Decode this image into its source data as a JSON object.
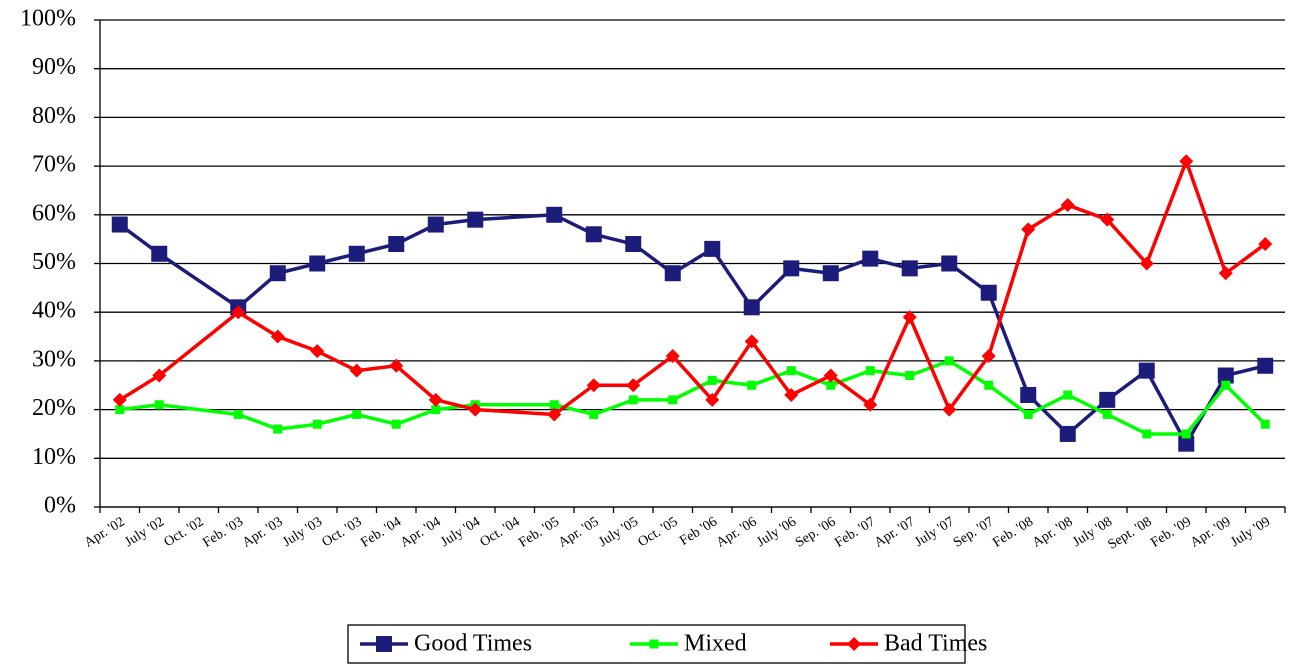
{
  "chart_data": {
    "type": "line",
    "categories": [
      "Apr. '02",
      "July '02",
      "Oct. '02",
      "Feb. '03",
      "Apr. '03",
      "July '03",
      "Oct. '03",
      "Feb. '04",
      "Apr. '04",
      "July '04",
      "Oct. '04",
      "Feb. '05",
      "Apr. '05",
      "July '05",
      "Oct. '05",
      "Feb '06",
      "Apr. '06",
      "July '06",
      "Sep. '06",
      "Feb. '07",
      "Apr. '07",
      "July '07",
      "Sep. '07",
      "Feb. '08",
      "Apr. '08",
      "July '08",
      "Sept. '08",
      "Feb. '09",
      "Apr. '09",
      "July '09"
    ],
    "series": [
      {
        "name": "Good Times",
        "color": "#1c1c7a",
        "marker": "square",
        "values": [
          58,
          52,
          null,
          41,
          48,
          50,
          52,
          54,
          58,
          59,
          null,
          60,
          56,
          54,
          48,
          53,
          41,
          49,
          48,
          51,
          49,
          50,
          44,
          23,
          15,
          22,
          28,
          13,
          27,
          29
        ]
      },
      {
        "name": "Mixed",
        "color": "#00ff00",
        "marker": "small-square",
        "values": [
          20,
          21,
          null,
          19,
          16,
          17,
          19,
          17,
          20,
          21,
          null,
          21,
          19,
          22,
          22,
          26,
          25,
          28,
          25,
          28,
          27,
          30,
          25,
          19,
          23,
          19,
          15,
          15,
          25,
          17
        ]
      },
      {
        "name": "Bad Times",
        "color": "#ff0000",
        "marker": "diamond",
        "values": [
          22,
          27,
          null,
          40,
          35,
          32,
          28,
          29,
          22,
          20,
          null,
          19,
          25,
          25,
          31,
          22,
          34,
          23,
          27,
          21,
          39,
          20,
          31,
          57,
          62,
          59,
          50,
          71,
          48,
          54
        ]
      }
    ],
    "ylim": [
      0,
      100
    ],
    "yticks": [
      {
        "value": 0,
        "label": "0%"
      },
      {
        "value": 10,
        "label": "10%"
      },
      {
        "value": 20,
        "label": "20%"
      },
      {
        "value": 30,
        "label": "30%"
      },
      {
        "value": 40,
        "label": "40%"
      },
      {
        "value": 50,
        "label": "50%"
      },
      {
        "value": 60,
        "label": "60%"
      },
      {
        "value": 70,
        "label": "70%"
      },
      {
        "value": 80,
        "label": "80%"
      },
      {
        "value": 90,
        "label": "90%"
      },
      {
        "value": 100,
        "label": "100%"
      }
    ],
    "grid": true,
    "legend": "bottom"
  }
}
